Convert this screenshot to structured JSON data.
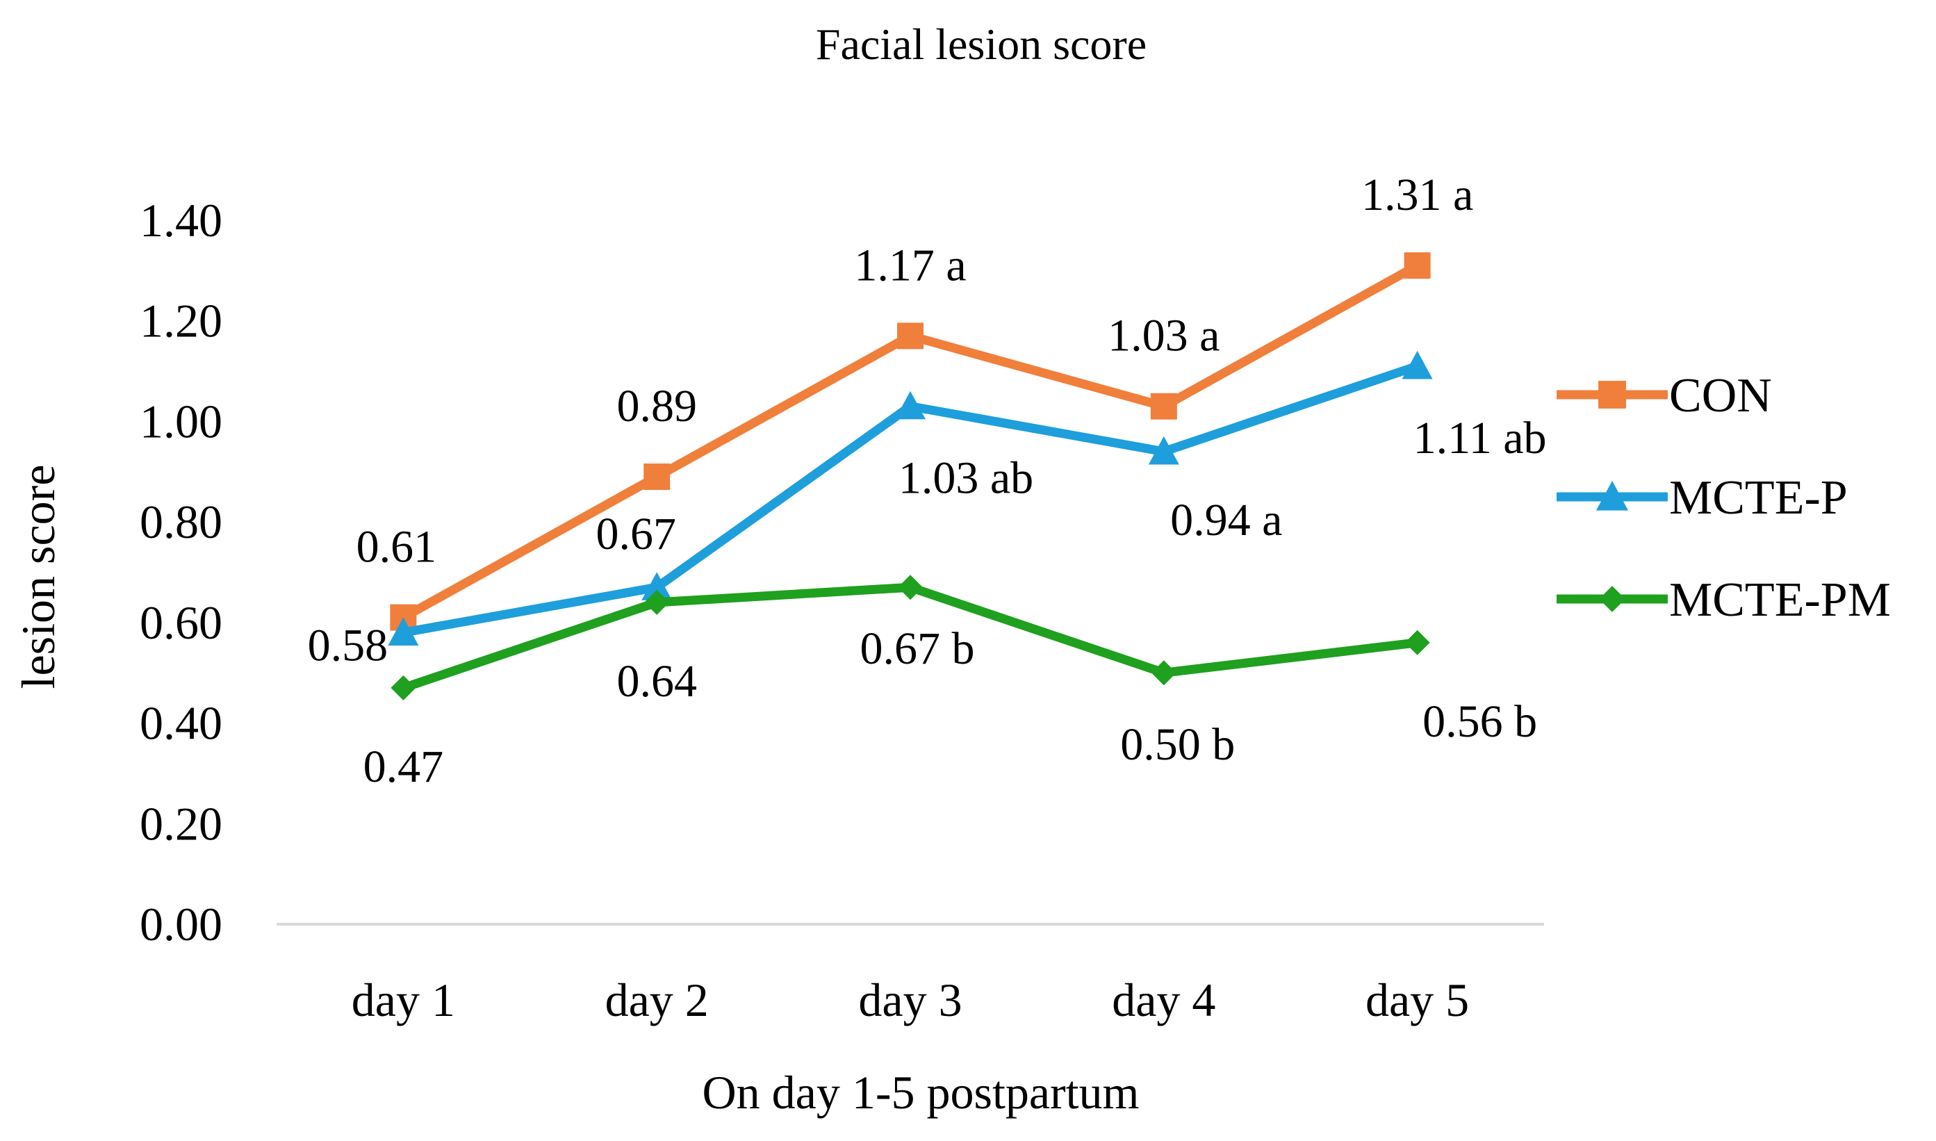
{
  "chart_data": {
    "type": "line",
    "title": "Facial lesion score",
    "xlabel": "On day 1-5 postpartum",
    "ylabel": "lesion score",
    "categories": [
      "day 1",
      "day 2",
      "day 3",
      "day 4",
      "day 5"
    ],
    "ylim": [
      0,
      1.4
    ],
    "yticks": [
      "0.00",
      "0.20",
      "0.40",
      "0.60",
      "0.80",
      "1.00",
      "1.20",
      "1.40"
    ],
    "grid": false,
    "legend_position": "right",
    "series": [
      {
        "name": "CON",
        "color": "#F07F3C",
        "marker": "square",
        "values": [
          0.61,
          0.89,
          1.17,
          1.03,
          1.31
        ],
        "labels": [
          "0.61",
          "0.89",
          "1.17 a",
          "1.03 a",
          "1.31 a"
        ]
      },
      {
        "name": "MCTE-P",
        "color": "#1E9FDB",
        "marker": "triangle",
        "values": [
          0.58,
          0.67,
          1.03,
          0.94,
          1.11
        ],
        "labels": [
          "0.58",
          "0.67",
          "1.03 ab",
          "0.94 a",
          "1.11 ab"
        ]
      },
      {
        "name": "MCTE-PM",
        "color": "#1FA01F",
        "marker": "diamond",
        "values": [
          0.47,
          0.64,
          0.67,
          0.5,
          0.56
        ],
        "labels": [
          "0.47",
          "0.64",
          "0.67 b",
          "0.50 b",
          "0.56 b"
        ]
      }
    ]
  }
}
